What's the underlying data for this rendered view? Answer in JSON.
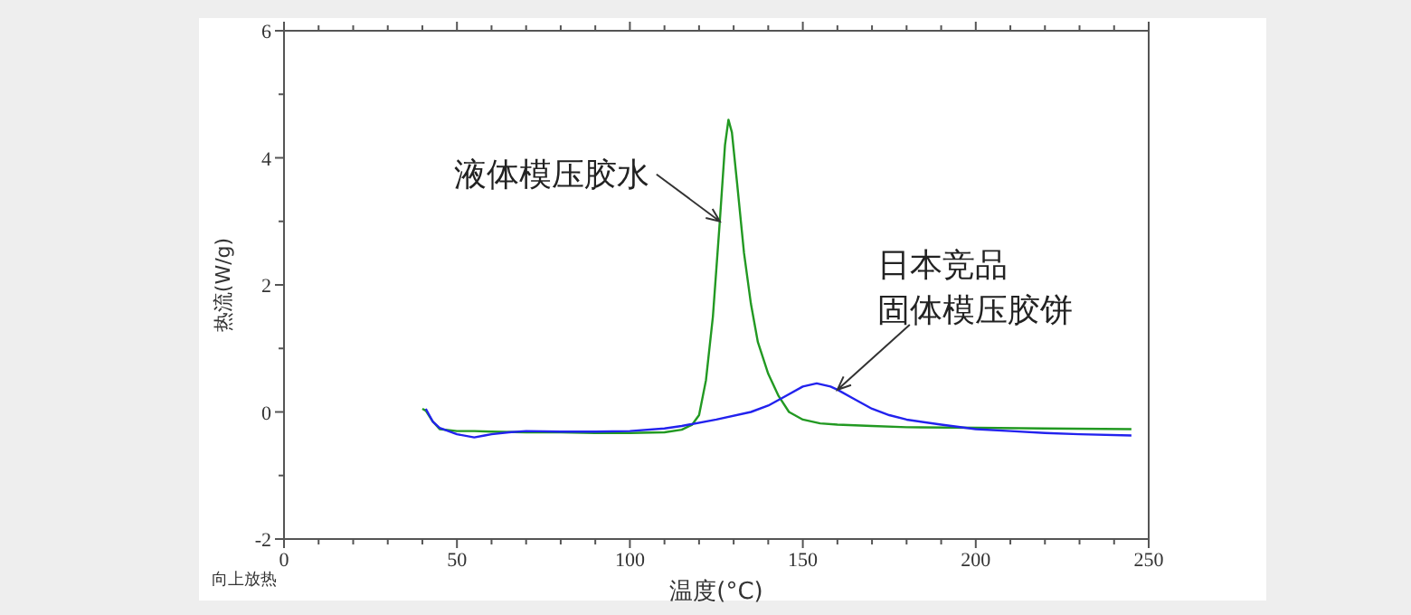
{
  "chart_data": {
    "type": "line",
    "xlabel": "温度(°C)",
    "ylabel": "热流(W/g)",
    "xlim": [
      0,
      250
    ],
    "ylim": [
      -2,
      6
    ],
    "xticks": [
      0,
      {
        "value": 10,
        "label": null
      },
      {
        "value": 20,
        "label": null
      },
      {
        "value": 30,
        "label": null
      },
      {
        "value": 40,
        "label": null
      },
      50,
      {
        "value": 60,
        "label": null
      },
      {
        "value": 70,
        "label": null
      },
      {
        "value": 80,
        "label": null
      },
      {
        "value": 90,
        "label": null
      },
      100,
      {
        "value": 110,
        "label": null
      },
      {
        "value": 120,
        "label": null
      },
      {
        "value": 130,
        "label": null
      },
      {
        "value": 140,
        "label": null
      },
      150,
      {
        "value": 160,
        "label": null
      },
      {
        "value": 170,
        "label": null
      },
      {
        "value": 180,
        "label": null
      },
      {
        "value": 190,
        "label": null
      },
      200,
      {
        "value": 210,
        "label": null
      },
      {
        "value": 220,
        "label": null
      },
      {
        "value": 230,
        "label": null
      },
      {
        "value": 240,
        "label": null
      },
      250
    ],
    "yticks": [
      -2,
      {
        "value": -1,
        "label": null
      },
      0,
      {
        "value": 1,
        "label": null
      },
      2,
      {
        "value": 3,
        "label": null
      },
      4,
      {
        "value": 5,
        "label": null
      },
      6
    ],
    "grid": false,
    "legend": false,
    "marker": "none",
    "line_style": "solid",
    "series": [
      {
        "color": "#229922",
        "x": [
          40,
          41,
          43,
          45,
          50,
          55,
          60,
          70,
          80,
          90,
          100,
          110,
          115,
          118,
          120,
          122,
          124,
          126,
          127.5,
          128.5,
          129.5,
          131,
          133,
          135,
          137,
          140,
          143,
          146,
          150,
          155,
          160,
          170,
          180,
          200,
          220,
          245
        ],
        "values": [
          0.05,
          0.02,
          -0.15,
          -0.27,
          -0.3,
          -0.3,
          -0.31,
          -0.32,
          -0.32,
          -0.33,
          -0.33,
          -0.32,
          -0.28,
          -0.2,
          -0.05,
          0.5,
          1.5,
          3.0,
          4.2,
          4.6,
          4.4,
          3.6,
          2.5,
          1.7,
          1.1,
          0.6,
          0.25,
          0.0,
          -0.12,
          -0.18,
          -0.2,
          -0.22,
          -0.24,
          -0.25,
          -0.26,
          -0.27
        ]
      },
      {
        "color": "#2222ee",
        "x": [
          41,
          42,
          43,
          45,
          50,
          55,
          58,
          60,
          65,
          70,
          80,
          90,
          100,
          110,
          115,
          125,
          135,
          140,
          145,
          150,
          154,
          158,
          160,
          165,
          170,
          175,
          180,
          190,
          200,
          210,
          220,
          230,
          245
        ],
        "values": [
          0.05,
          -0.05,
          -0.15,
          -0.25,
          -0.35,
          -0.4,
          -0.37,
          -0.35,
          -0.32,
          -0.3,
          -0.31,
          -0.31,
          -0.3,
          -0.26,
          -0.22,
          -0.12,
          0.0,
          0.1,
          0.25,
          0.4,
          0.45,
          0.4,
          0.35,
          0.2,
          0.05,
          -0.05,
          -0.12,
          -0.2,
          -0.27,
          -0.3,
          -0.33,
          -0.35,
          -0.37
        ]
      }
    ],
    "annotations": [
      {
        "text": "液体模压胶水",
        "x": 126,
        "y": 3.0
      },
      {
        "text": "日本竞品固体模压胶饼",
        "x": 160,
        "y": 0.35
      },
      "向上放热"
    ]
  }
}
